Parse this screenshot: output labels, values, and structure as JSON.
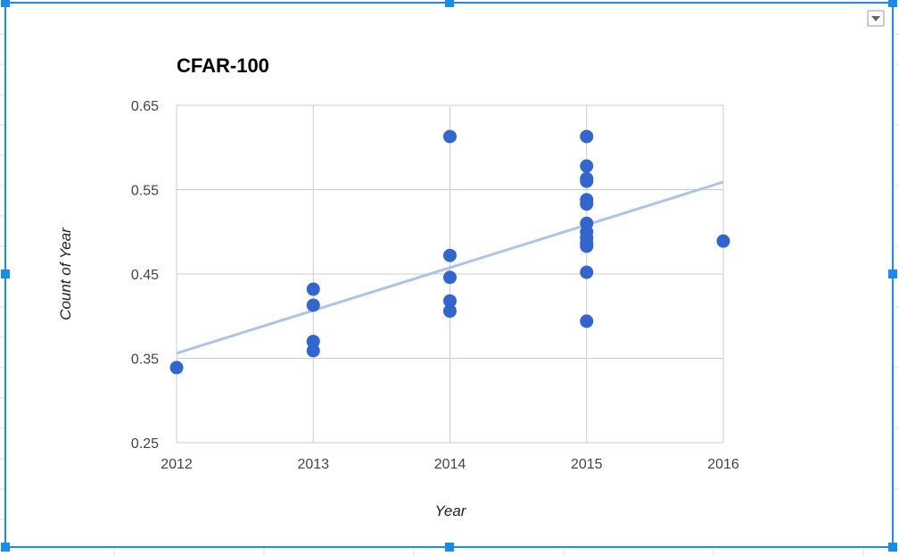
{
  "chart_data": {
    "type": "scatter",
    "title": "CFAR-100",
    "xlabel": "Year",
    "ylabel": "Count of Year",
    "xlim": [
      2012,
      2016
    ],
    "ylim": [
      0.25,
      0.65
    ],
    "x_ticks": [
      "2012",
      "2013",
      "2014",
      "2015",
      "2016"
    ],
    "y_ticks": [
      "0.65",
      "0.55",
      "0.45",
      "0.35",
      "0.25"
    ],
    "grid": true,
    "legend": "none",
    "series": [
      {
        "color": "#3366cc",
        "points": [
          {
            "x": 2012,
            "y": 0.339
          },
          {
            "x": 2013,
            "y": 0.432
          },
          {
            "x": 2013,
            "y": 0.413
          },
          {
            "x": 2013,
            "y": 0.37
          },
          {
            "x": 2013,
            "y": 0.359
          },
          {
            "x": 2014,
            "y": 0.613
          },
          {
            "x": 2014,
            "y": 0.472
          },
          {
            "x": 2014,
            "y": 0.446
          },
          {
            "x": 2014,
            "y": 0.418
          },
          {
            "x": 2014,
            "y": 0.406
          },
          {
            "x": 2015,
            "y": 0.613
          },
          {
            "x": 2015,
            "y": 0.578
          },
          {
            "x": 2015,
            "y": 0.563
          },
          {
            "x": 2015,
            "y": 0.56
          },
          {
            "x": 2015,
            "y": 0.538
          },
          {
            "x": 2015,
            "y": 0.533
          },
          {
            "x": 2015,
            "y": 0.51
          },
          {
            "x": 2015,
            "y": 0.5
          },
          {
            "x": 2015,
            "y": 0.493
          },
          {
            "x": 2015,
            "y": 0.487
          },
          {
            "x": 2015,
            "y": 0.483
          },
          {
            "x": 2015,
            "y": 0.452
          },
          {
            "x": 2015,
            "y": 0.394
          },
          {
            "x": 2016,
            "y": 0.489
          }
        ]
      }
    ],
    "trendline": {
      "color": "#aec3ea",
      "start": {
        "x": 2012,
        "y": 0.356
      },
      "end": {
        "x": 2016,
        "y": 0.559
      }
    }
  },
  "colors": {
    "selection_border": "#1a8ce8",
    "grid": "#cccccc",
    "menu_arrow": "#666666"
  },
  "icons": {
    "menu": "dropdown-arrow-icon"
  }
}
